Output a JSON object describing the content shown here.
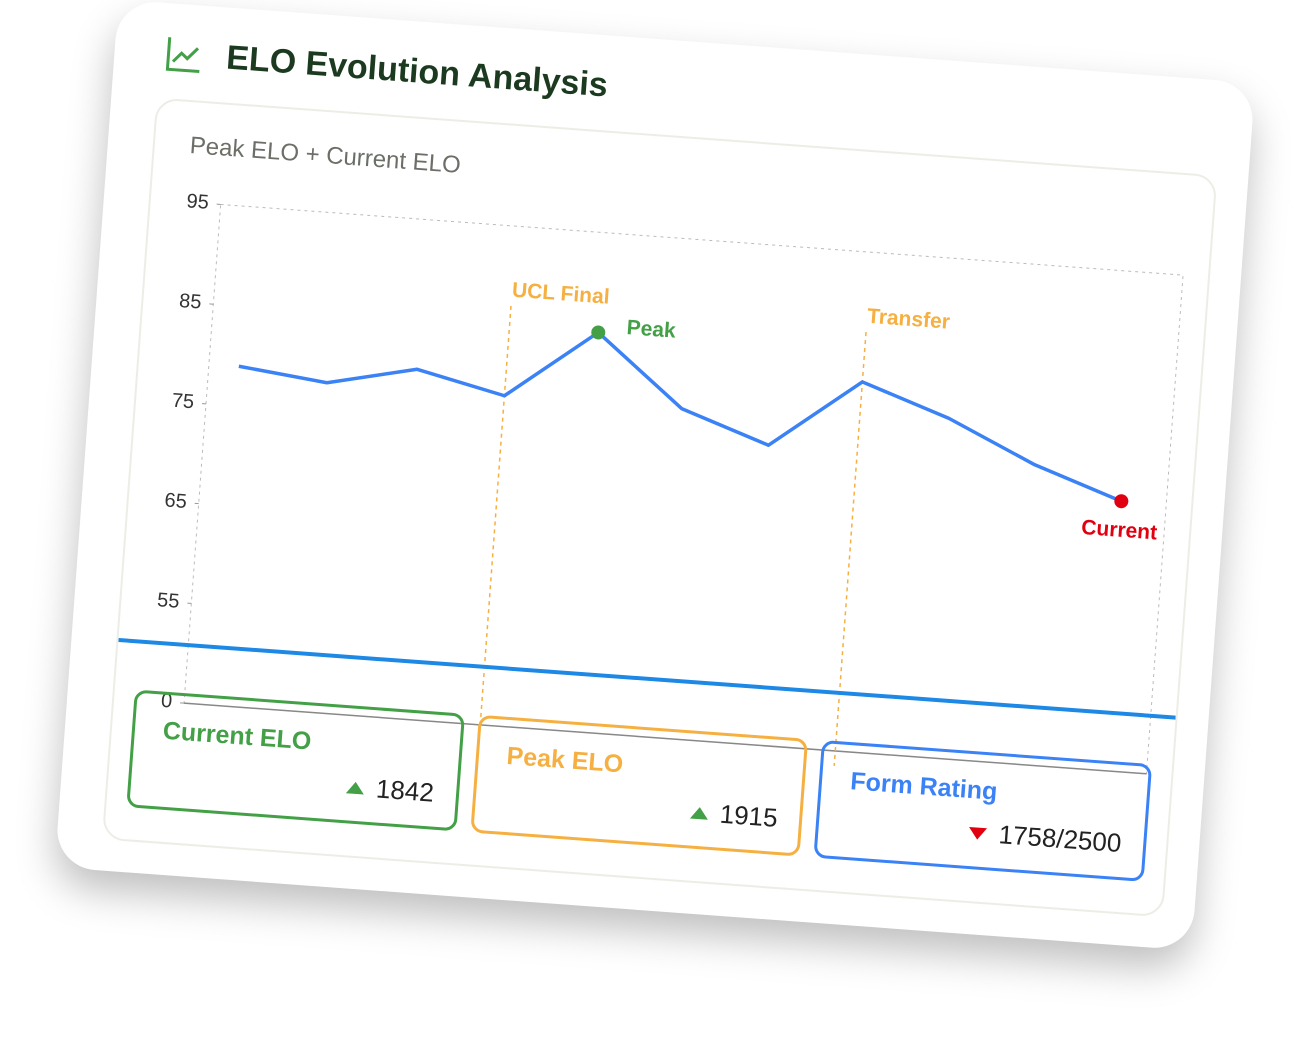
{
  "header": {
    "title": "ELO Evolution Analysis"
  },
  "chart_data": {
    "type": "line",
    "title": "Peak ELO + Current ELO",
    "categories": [
      null,
      null,
      null,
      null,
      null,
      null,
      null,
      null,
      null,
      null,
      null
    ],
    "series": [
      {
        "color": "#3b82f6",
        "values": [
          79,
          78,
          80,
          78,
          85,
          78,
          75,
          82,
          79,
          75,
          72
        ]
      }
    ],
    "ylim": [
      0,
      95
    ],
    "yticks": [
      0,
      55,
      65,
      75,
      85,
      95
    ],
    "reference_line": {
      "value": 32,
      "color": "#1e88e5"
    },
    "events": [
      {
        "x": 3,
        "label": "UCL Final",
        "color": "#f5b041"
      },
      {
        "x": 7,
        "label": "Transfer",
        "color": "#f5b041"
      }
    ],
    "annotations": [
      {
        "x": 4,
        "label": "Peak",
        "color": "#43a047"
      },
      {
        "x": 10,
        "label": "Current",
        "color": "#e0000f"
      }
    ]
  },
  "stats": [
    {
      "label": "Current ELO",
      "value": "1842",
      "trend": "up",
      "color": "#43a047"
    },
    {
      "label": "Peak ELO",
      "value": "1915",
      "trend": "up",
      "color": "#f5b041"
    },
    {
      "label": "Form Rating",
      "value": "1758/2500",
      "trend": "down",
      "color": "#3b82f6"
    }
  ]
}
